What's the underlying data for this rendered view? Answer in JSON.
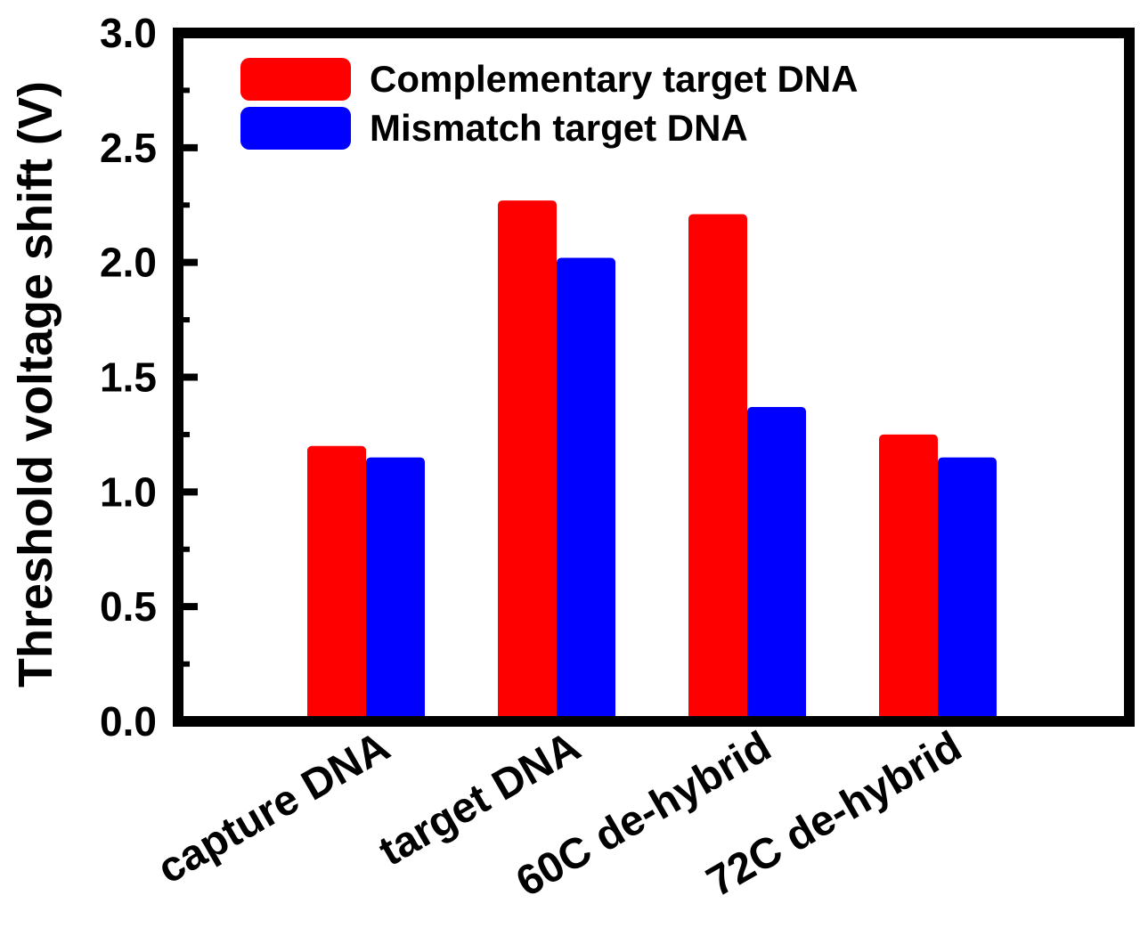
{
  "chart_data": {
    "type": "bar",
    "title": "",
    "xlabel": "",
    "ylabel": "Threshold voltage shift (V)",
    "ylim": [
      0,
      3.0
    ],
    "yticks": [
      0.0,
      0.5,
      1.0,
      1.5,
      2.0,
      2.5,
      3.0
    ],
    "ytick_labels": [
      "0.0",
      "0.5",
      "1.0",
      "1.5",
      "2.0",
      "2.5",
      "3.0"
    ],
    "categories": [
      "capture DNA",
      "target DNA",
      "60C de-hybrid",
      "72C de-hybrid"
    ],
    "series": [
      {
        "name": "Complementary target DNA",
        "color": "#ff0000",
        "values": [
          1.2,
          2.27,
          2.21,
          1.25
        ]
      },
      {
        "name": "Mismatch target DNA",
        "color": "#0000ff",
        "values": [
          1.15,
          2.02,
          1.37,
          1.15
        ]
      }
    ],
    "legend_position": "top-left",
    "grid": false
  }
}
